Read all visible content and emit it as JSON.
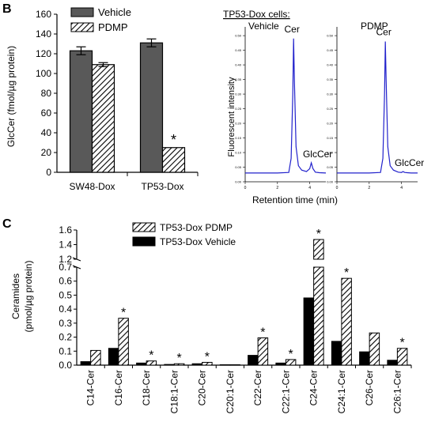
{
  "panel_labels": {
    "b": "B",
    "c": "C"
  },
  "chart_data": [
    {
      "id": "glccer_bar",
      "type": "bar",
      "ylabel": "GlcCer (fmol/µg protein)",
      "ylim": [
        0,
        160
      ],
      "yticks": [
        "0",
        "20",
        "40",
        "60",
        "80",
        "100",
        "120",
        "140",
        "160"
      ],
      "categories": [
        "SW48-Dox",
        "TP53-Dox"
      ],
      "series": [
        {
          "name": "Vehicle",
          "values": [
            123,
            131
          ],
          "errors": [
            4,
            4
          ],
          "fill": "#595959"
        },
        {
          "name": "PDMP",
          "values": [
            109,
            25
          ],
          "errors": [
            2,
            0
          ],
          "fill": "hatch"
        }
      ],
      "legend": "top-left",
      "annotations": [
        {
          "text": "*",
          "category": 1,
          "series": 1
        }
      ]
    },
    {
      "id": "hplc_trace",
      "type": "line",
      "heading": "TP53-Dox cells:",
      "xlabel": "Retention time (min)",
      "ylabel": "Fluorescent intensity",
      "line_color": "#2222cc",
      "panels": [
        {
          "title": "Vehicle",
          "xticks": [
            "0",
            "2",
            "4"
          ],
          "yticks": [
            "0.00",
            "0.05",
            "0.10",
            "0.15",
            "0.20",
            "0.25",
            "0.30",
            "0.35",
            "0.40",
            "0.45",
            "0.50"
          ],
          "xlim": [
            0,
            5
          ],
          "ylim": [
            0,
            0.53
          ],
          "x": [
            0,
            1,
            2,
            2.7,
            2.85,
            2.95,
            3.0,
            3.05,
            3.15,
            3.3,
            3.5,
            3.8,
            4.0,
            4.1,
            4.2,
            4.35,
            4.6,
            5
          ],
          "y": [
            0.03,
            0.03,
            0.03,
            0.032,
            0.08,
            0.3,
            0.49,
            0.35,
            0.12,
            0.055,
            0.04,
            0.035,
            0.045,
            0.065,
            0.045,
            0.033,
            0.031,
            0.03
          ],
          "peaks": [
            {
              "label": "Cer",
              "x": 3.0
            },
            {
              "label": "GlcCer",
              "x": 4.1
            }
          ]
        },
        {
          "title": "PDMP",
          "xticks": [
            "0",
            "2",
            "4"
          ],
          "yticks": [
            "0.00",
            "0.05",
            "0.10",
            "0.15",
            "0.20",
            "0.25",
            "0.30",
            "0.35",
            "0.40",
            "0.45",
            "0.50"
          ],
          "xlim": [
            0,
            5
          ],
          "ylim": [
            0,
            0.53
          ],
          "x": [
            0,
            1,
            2,
            2.7,
            2.85,
            2.95,
            3.0,
            3.05,
            3.15,
            3.3,
            3.5,
            3.8,
            4.0,
            4.1,
            4.2,
            4.35,
            4.6,
            5
          ],
          "y": [
            0.03,
            0.03,
            0.03,
            0.032,
            0.08,
            0.3,
            0.48,
            0.35,
            0.12,
            0.055,
            0.04,
            0.033,
            0.032,
            0.035,
            0.032,
            0.031,
            0.03,
            0.03
          ],
          "peaks": [
            {
              "label": "Cer",
              "x": 3.0
            },
            {
              "label": "GlcCer",
              "x": 4.1
            }
          ]
        }
      ]
    },
    {
      "id": "ceramides_bar",
      "type": "bar",
      "ylabel": [
        "Ceramides",
        "(pmol/µg protein)"
      ],
      "axis_break": {
        "lower": [
          0,
          0.7
        ],
        "upper": [
          1.2,
          1.6
        ]
      },
      "yticks_lower": [
        "0.0",
        "0.1",
        "0.2",
        "0.3",
        "0.4",
        "0.5",
        "0.6",
        "0.7"
      ],
      "yticks_upper": [
        "1.2",
        "1.4",
        "1.6"
      ],
      "categories": [
        "C14-Cer",
        "C16-Cer",
        "C18-Cer",
        "C18:1-Cer",
        "C20-Cer",
        "C20:1-Cer",
        "C22-Cer",
        "C22:1-Cer",
        "C24-Cer",
        "C24:1-Cer",
        "C26-Cer",
        "C26:1-Cer"
      ],
      "series": [
        {
          "name": "TP53-Dox Vehicle",
          "fill": "#000000",
          "values": [
            0.025,
            0.12,
            0.015,
            0.005,
            0.01,
            0.003,
            0.07,
            0.015,
            0.48,
            0.17,
            0.095,
            0.035
          ]
        },
        {
          "name": "TP53-Dox PDMP",
          "fill": "hatch",
          "values": [
            0.105,
            0.335,
            0.03,
            0.01,
            0.02,
            0.003,
            0.195,
            0.04,
            1.47,
            0.62,
            0.23,
            0.12
          ]
        }
      ],
      "starred": [
        1,
        2,
        3,
        4,
        6,
        7,
        8,
        9,
        11
      ],
      "legend": "top-center"
    }
  ]
}
